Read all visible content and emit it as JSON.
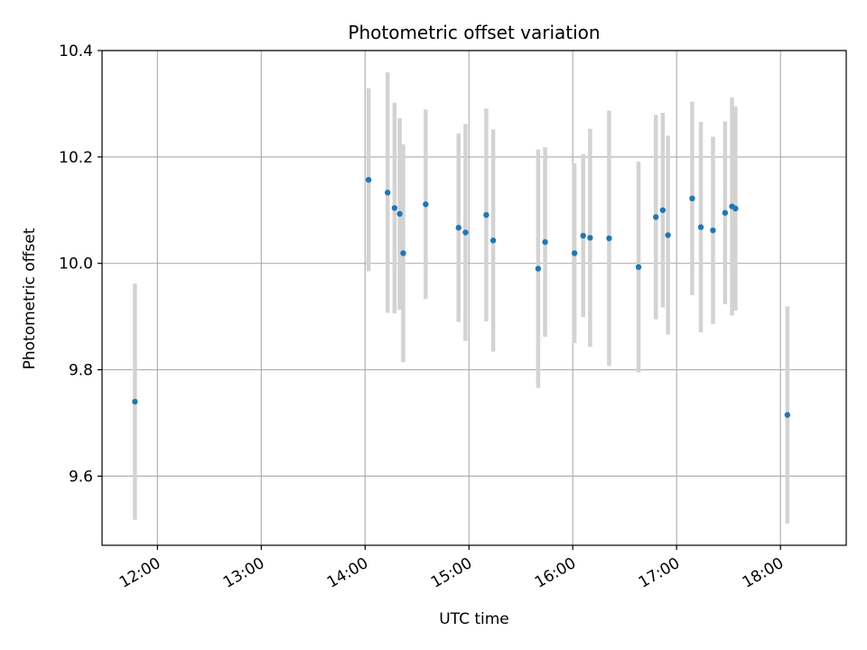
{
  "chart_data": {
    "type": "scatter",
    "title": "Photometric offset variation",
    "xlabel": "UTC time",
    "ylabel": "Photometric offset",
    "x_tick_labels": [
      "12:00",
      "13:00",
      "14:00",
      "15:00",
      "16:00",
      "17:00",
      "18:00"
    ],
    "y_tick_labels": [
      "9.6",
      "9.8",
      "10.0",
      "10.2",
      "10.4"
    ],
    "xlim": [
      "11:28",
      "18:38"
    ],
    "ylim": [
      9.47,
      10.4
    ],
    "grid": true,
    "colors": {
      "points": "#1f77b4",
      "errorbars": "#d3d3d3",
      "grid": "#b0b0b0"
    },
    "points": [
      {
        "x": "11:47",
        "y": 9.74,
        "yerr": 0.222
      },
      {
        "x": "14:02",
        "y": 10.157,
        "yerr": 0.172
      },
      {
        "x": "14:13",
        "y": 10.133,
        "yerr": 0.226
      },
      {
        "x": "14:17",
        "y": 10.104,
        "yerr": 0.198
      },
      {
        "x": "14:20",
        "y": 10.093,
        "yerr": 0.18
      },
      {
        "x": "14:22",
        "y": 10.019,
        "yerr": 0.205
      },
      {
        "x": "14:35",
        "y": 10.111,
        "yerr": 0.178
      },
      {
        "x": "14:54",
        "y": 10.067,
        "yerr": 0.177
      },
      {
        "x": "14:58",
        "y": 10.058,
        "yerr": 0.204
      },
      {
        "x": "15:10",
        "y": 10.091,
        "yerr": 0.2
      },
      {
        "x": "15:14",
        "y": 10.043,
        "yerr": 0.209
      },
      {
        "x": "15:40",
        "y": 9.99,
        "yerr": 0.224
      },
      {
        "x": "15:44",
        "y": 10.04,
        "yerr": 0.178
      },
      {
        "x": "16:01",
        "y": 10.019,
        "yerr": 0.169
      },
      {
        "x": "16:06",
        "y": 10.052,
        "yerr": 0.153
      },
      {
        "x": "16:10",
        "y": 10.048,
        "yerr": 0.205
      },
      {
        "x": "16:21",
        "y": 10.047,
        "yerr": 0.24
      },
      {
        "x": "16:38",
        "y": 9.993,
        "yerr": 0.198
      },
      {
        "x": "16:48",
        "y": 10.087,
        "yerr": 0.192
      },
      {
        "x": "16:52",
        "y": 10.1,
        "yerr": 0.183
      },
      {
        "x": "16:55",
        "y": 10.053,
        "yerr": 0.187
      },
      {
        "x": "17:09",
        "y": 10.122,
        "yerr": 0.182
      },
      {
        "x": "17:14",
        "y": 10.068,
        "yerr": 0.198
      },
      {
        "x": "17:21",
        "y": 10.062,
        "yerr": 0.176
      },
      {
        "x": "17:28",
        "y": 10.095,
        "yerr": 0.172
      },
      {
        "x": "17:32",
        "y": 10.107,
        "yerr": 0.205
      },
      {
        "x": "17:34",
        "y": 10.103,
        "yerr": 0.192
      },
      {
        "x": "18:04",
        "y": 9.715,
        "yerr": 0.204
      }
    ]
  }
}
